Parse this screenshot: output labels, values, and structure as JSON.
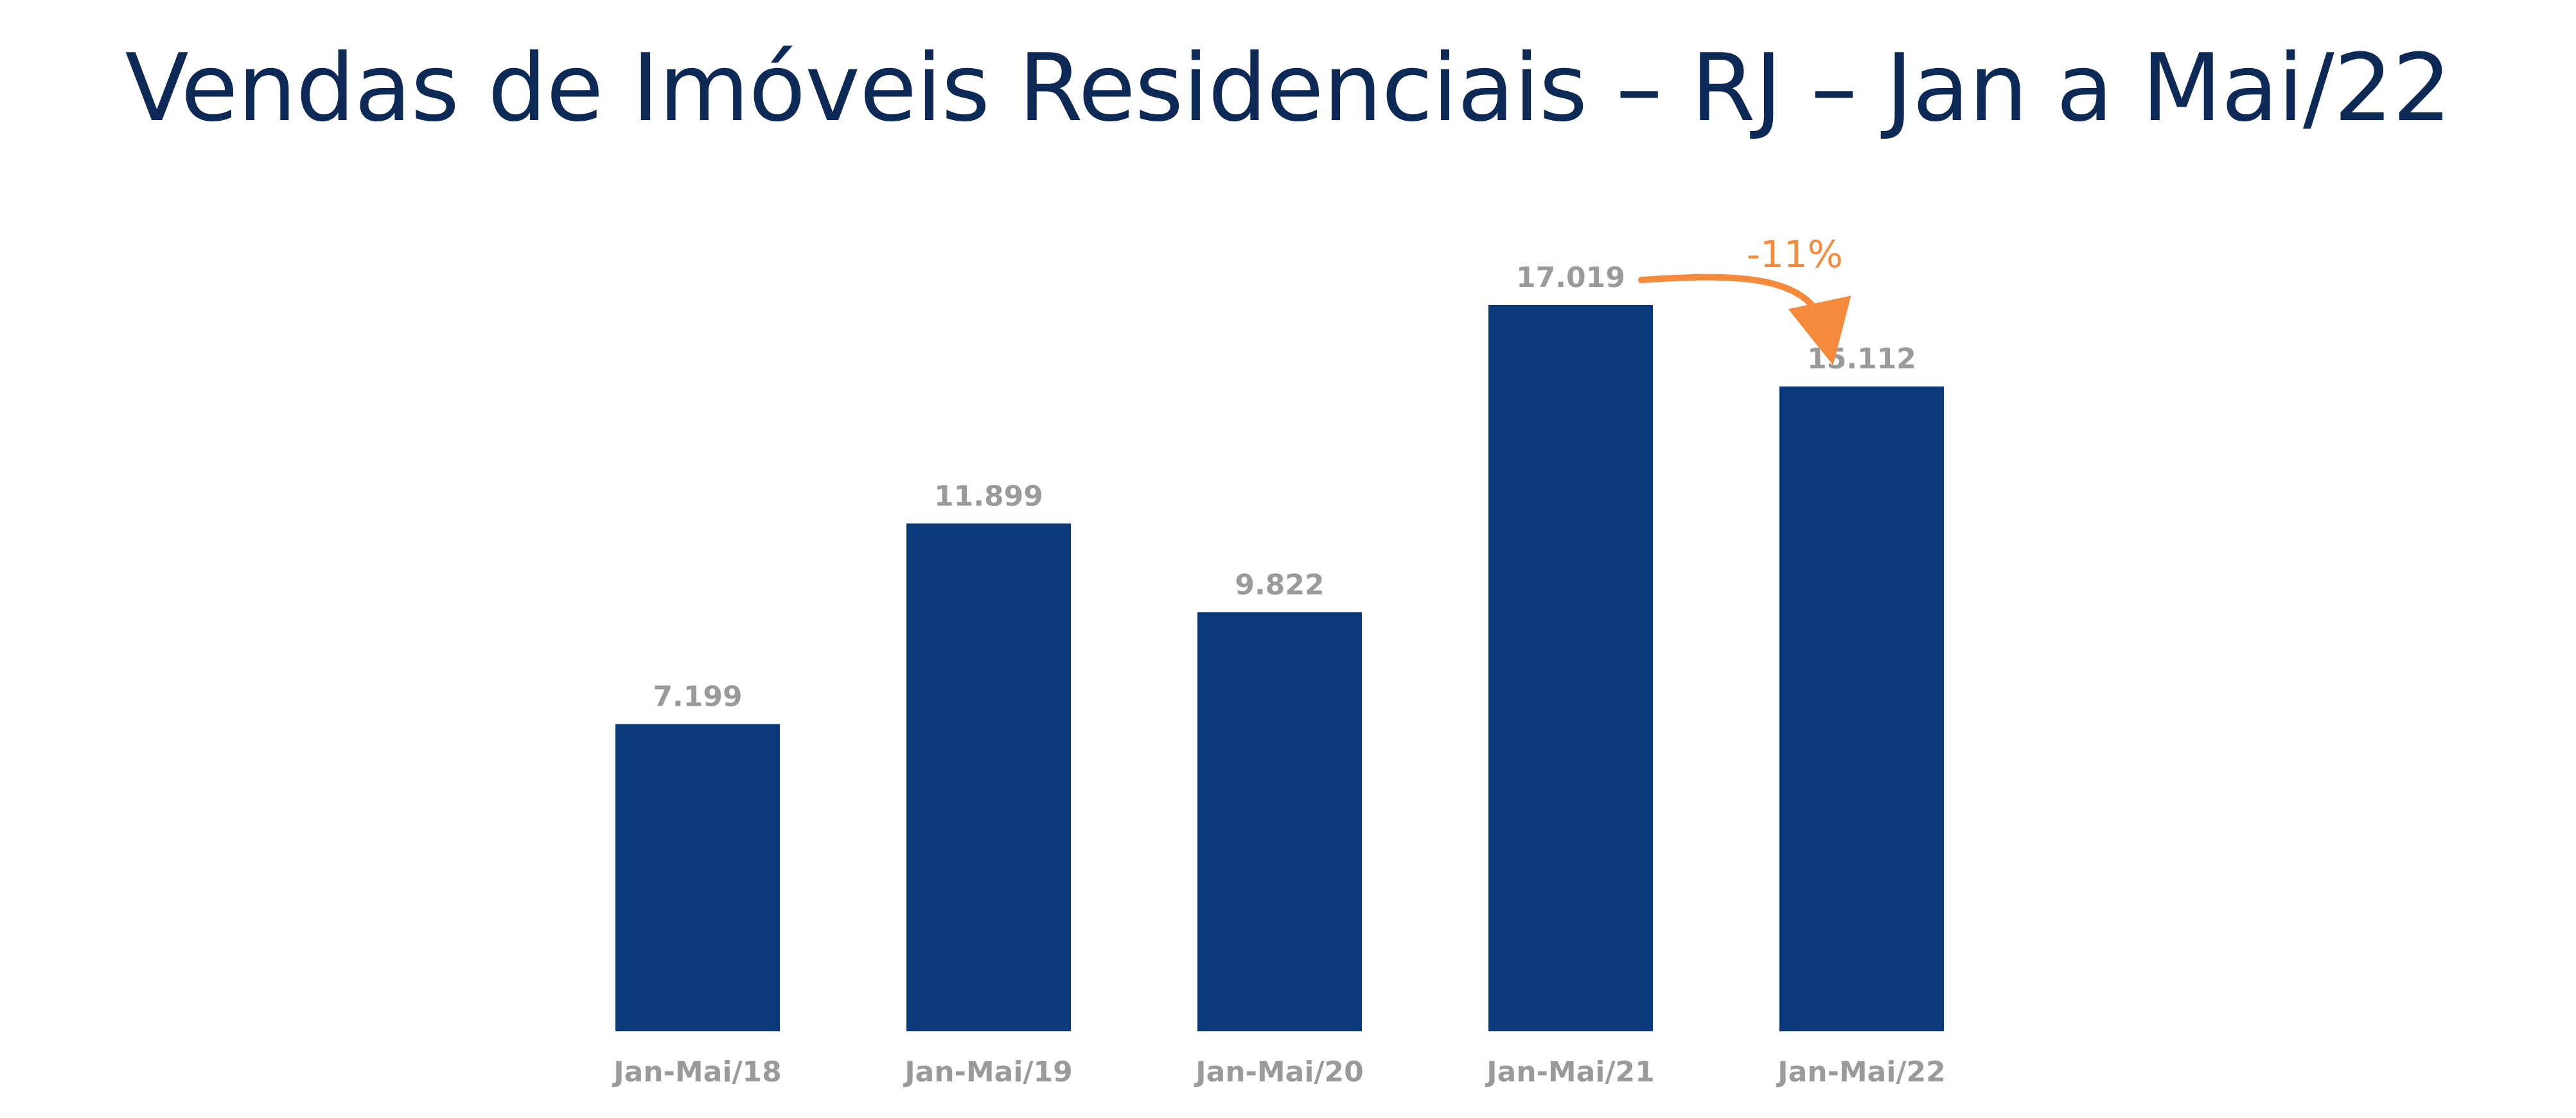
{
  "chart_data": {
    "type": "bar",
    "title": "Vendas de Imóveis Residenciais – RJ – Jan a Mai/22",
    "categories": [
      "Jan-Mai/18",
      "Jan-Mai/19",
      "Jan-Mai/20",
      "Jan-Mai/21",
      "Jan-Mai/22"
    ],
    "values": [
      7199,
      11899,
      9822,
      17019,
      15112
    ],
    "value_labels": [
      "7.199",
      "11.899",
      "9.822",
      "17.019",
      "15.112"
    ],
    "xlabel": "",
    "ylabel": "",
    "ylim": [
      0,
      17019
    ],
    "grid": false,
    "legend": "none",
    "bar_color": "#0b3a7c",
    "annotation": {
      "text": "-11%",
      "from_category": "Jan-Mai/21",
      "to_category": "Jan-Mai/22",
      "color": "#f58a3c"
    }
  }
}
